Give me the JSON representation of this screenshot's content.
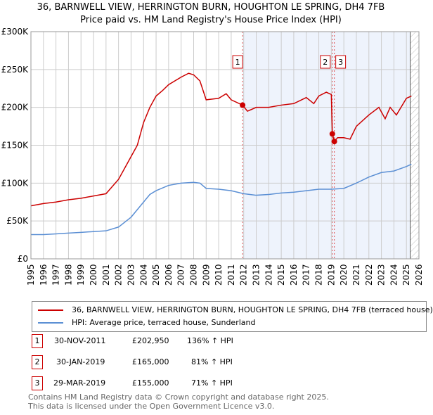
{
  "chart_data": {
    "type": "line",
    "title": "36, BARNWELL VIEW, HERRINGTON BURN, HOUGHTON LE SPRING, DH4 7FB",
    "subtitle": "Price paid vs. HM Land Registry's House Price Index (HPI)",
    "xlim": [
      1995,
      2026
    ],
    "ylim": [
      0,
      300000
    ],
    "x_ticks": [
      "1995",
      "1996",
      "1997",
      "1998",
      "1999",
      "2000",
      "2001",
      "2002",
      "2003",
      "2004",
      "2005",
      "2006",
      "2007",
      "2008",
      "2009",
      "2010",
      "2011",
      "2012",
      "2013",
      "2014",
      "2015",
      "2016",
      "2017",
      "2018",
      "2019",
      "2020",
      "2021",
      "2022",
      "2023",
      "2024",
      "2025",
      "2026"
    ],
    "y_ticks": [
      {
        "v": 0,
        "label": "£0"
      },
      {
        "v": 50000,
        "label": "£50K"
      },
      {
        "v": 100000,
        "label": "£100K"
      },
      {
        "v": 150000,
        "label": "£150K"
      },
      {
        "v": 200000,
        "label": "£200K"
      },
      {
        "v": 250000,
        "label": "£250K"
      },
      {
        "v": 300000,
        "label": "£300K"
      }
    ],
    "grid": true,
    "series": [
      {
        "name": "36, BARNWELL VIEW, HERRINGTON BURN, HOUGHTON LE SPRING, DH4 7FB (terraced house)",
        "color": "#cc0000",
        "points": [
          [
            1995,
            70000
          ],
          [
            1996,
            73000
          ],
          [
            1997,
            75000
          ],
          [
            1998,
            78000
          ],
          [
            1999,
            80000
          ],
          [
            2000,
            83000
          ],
          [
            2001,
            86000
          ],
          [
            2002,
            105000
          ],
          [
            2003,
            135000
          ],
          [
            2003.5,
            150000
          ],
          [
            2004,
            180000
          ],
          [
            2004.5,
            200000
          ],
          [
            2005,
            215000
          ],
          [
            2005.5,
            222000
          ],
          [
            2006,
            230000
          ],
          [
            2007,
            240000
          ],
          [
            2007.6,
            245000
          ],
          [
            2008,
            243000
          ],
          [
            2008.5,
            235000
          ],
          [
            2009,
            210000
          ],
          [
            2010,
            212000
          ],
          [
            2010.6,
            218000
          ],
          [
            2011,
            210000
          ],
          [
            2011.91,
            202950
          ],
          [
            2012.3,
            195000
          ],
          [
            2013,
            200000
          ],
          [
            2014,
            200000
          ],
          [
            2015,
            203000
          ],
          [
            2016,
            205000
          ],
          [
            2017,
            213000
          ],
          [
            2017.6,
            205000
          ],
          [
            2018,
            215000
          ],
          [
            2018.6,
            220000
          ],
          [
            2019,
            217000
          ],
          [
            2019.08,
            165000
          ],
          [
            2019.24,
            155000
          ],
          [
            2019.5,
            160000
          ],
          [
            2020,
            160000
          ],
          [
            2020.5,
            158000
          ],
          [
            2021,
            175000
          ],
          [
            2022,
            190000
          ],
          [
            2022.8,
            200000
          ],
          [
            2023.3,
            185000
          ],
          [
            2023.7,
            200000
          ],
          [
            2024.2,
            190000
          ],
          [
            2025,
            212000
          ],
          [
            2025.4,
            215000
          ]
        ]
      },
      {
        "name": "HPI: Average price, terraced house, Sunderland",
        "color": "#5b8fd4",
        "points": [
          [
            1995,
            32000
          ],
          [
            1996,
            32000
          ],
          [
            1997,
            33000
          ],
          [
            1998,
            34000
          ],
          [
            1999,
            35000
          ],
          [
            2000,
            36000
          ],
          [
            2001,
            37000
          ],
          [
            2002,
            42000
          ],
          [
            2003,
            55000
          ],
          [
            2004,
            75000
          ],
          [
            2004.5,
            85000
          ],
          [
            2005,
            90000
          ],
          [
            2006,
            97000
          ],
          [
            2007,
            100000
          ],
          [
            2008,
            101000
          ],
          [
            2008.5,
            100000
          ],
          [
            2009,
            93000
          ],
          [
            2010,
            92000
          ],
          [
            2011,
            90000
          ],
          [
            2012,
            86000
          ],
          [
            2013,
            84000
          ],
          [
            2014,
            85000
          ],
          [
            2015,
            87000
          ],
          [
            2016,
            88000
          ],
          [
            2017,
            90000
          ],
          [
            2018,
            92000
          ],
          [
            2019,
            92000
          ],
          [
            2020,
            93000
          ],
          [
            2021,
            100000
          ],
          [
            2022,
            108000
          ],
          [
            2023,
            114000
          ],
          [
            2024,
            116000
          ],
          [
            2025,
            122000
          ],
          [
            2025.4,
            125000
          ]
        ]
      }
    ],
    "sales": [
      {
        "id": "1",
        "x": 2011.91,
        "y": 202950
      },
      {
        "id": "2",
        "x": 2019.08,
        "y": 165000
      },
      {
        "id": "3",
        "x": 2019.24,
        "y": 155000
      }
    ],
    "shaded_from": 2011.91,
    "hatched_from": 2025.3
  },
  "legend": [
    "36, BARNWELL VIEW, HERRINGTON BURN, HOUGHTON LE SPRING, DH4 7FB (terraced house)",
    "HPI: Average price, terraced house, Sunderland"
  ],
  "table": [
    {
      "n": "1",
      "date": "30-NOV-2011",
      "price": "£202,950",
      "hpi": "136% ↑ HPI"
    },
    {
      "n": "2",
      "date": "30-JAN-2019",
      "price": "£165,000",
      "hpi": "81% ↑ HPI"
    },
    {
      "n": "3",
      "date": "29-MAR-2019",
      "price": "£155,000",
      "hpi": "71% ↑ HPI"
    }
  ],
  "footer": [
    "Contains HM Land Registry data © Crown copyright and database right 2025.",
    "This data is licensed under the Open Government Licence v3.0."
  ]
}
